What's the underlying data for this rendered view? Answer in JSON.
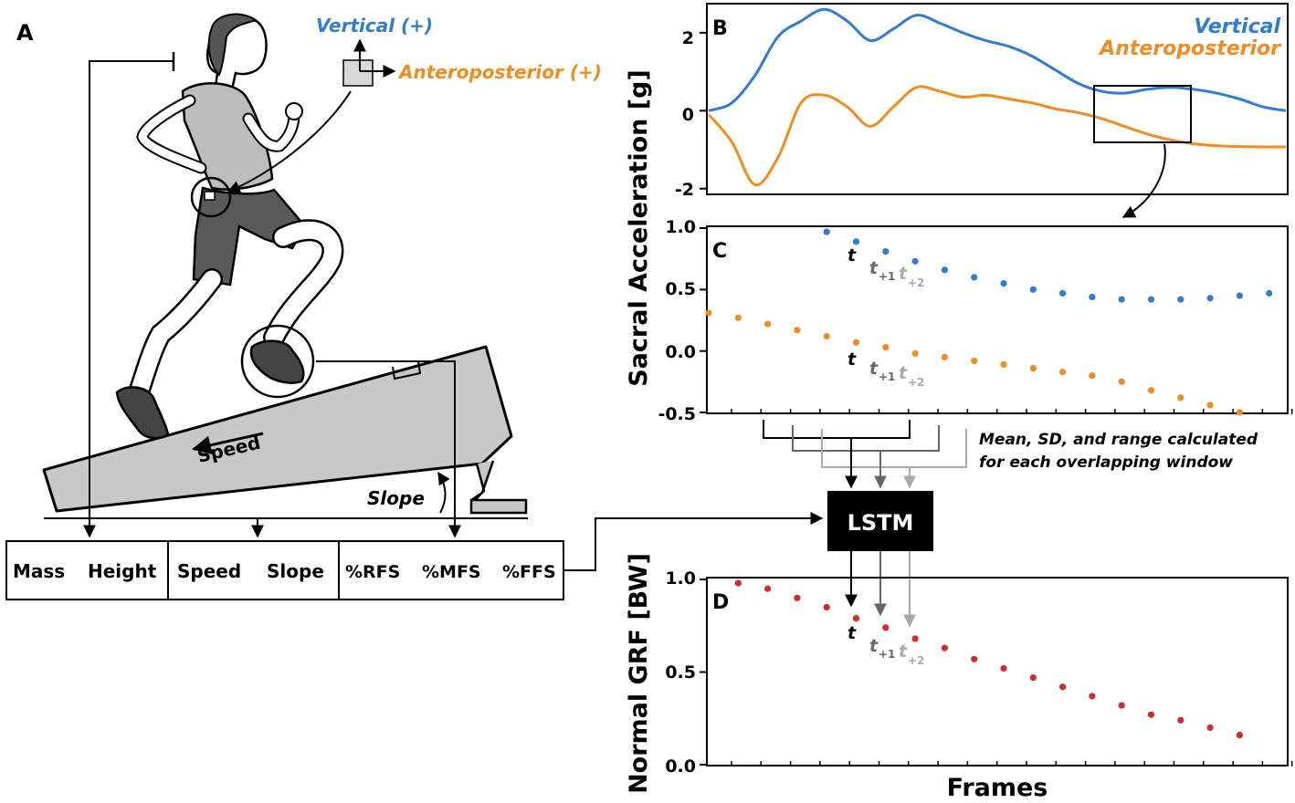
{
  "panel_a": {
    "letter": "A",
    "vertical_label": "Vertical (+)",
    "ap_label": "Anteroposterior (+)",
    "speed_label": "Speed",
    "slope_label": "Slope",
    "inputs": [
      "Mass",
      "Height",
      "Speed",
      "Slope",
      "%RFS",
      "%MFS",
      "%FFS"
    ]
  },
  "panel_b": {
    "letter": "B",
    "yticks": [
      "2",
      "0",
      "-2"
    ],
    "legend": {
      "vertical": "Vertical",
      "anteroposterior": "Anteroposterior"
    }
  },
  "panel_c": {
    "letter": "C",
    "yticks": [
      "1.0",
      "0.5",
      "0.0",
      "-0.5"
    ],
    "t": "t",
    "t1": "t",
    "t1_sub": "+1",
    "t2": "t",
    "t2_sub": "+2"
  },
  "panel_d": {
    "letter": "D",
    "yticks": [
      "1.0",
      "0.5",
      "0.0"
    ],
    "t": "t",
    "t1": "t",
    "t1_sub": "+1",
    "t2": "t",
    "t2_sub": "+2"
  },
  "shared_ylabel": "Sacral Acceleration [g]",
  "d_ylabel": "Normal GRF [BW]",
  "xlabel": "Frames",
  "lstm_label": "LSTM",
  "window_note": [
    "Mean, SD, and range calculated",
    "for each overlapping window"
  ],
  "colors": {
    "vertical": "#2f7cd0",
    "anteroposterior": "#f28b20",
    "grf": "#d12b2b",
    "gray1": "#666666",
    "gray2": "#aaaaaa"
  },
  "chart_data": [
    {
      "type": "line",
      "panel": "B",
      "ylim": [
        -2.1,
        2.7
      ],
      "yticks": [
        2,
        0,
        -2
      ],
      "series": [
        {
          "name": "Vertical",
          "x": [
            0,
            4,
            8,
            12,
            16,
            20,
            24,
            28,
            32,
            36,
            40,
            44,
            48,
            52,
            56,
            60,
            64,
            68,
            72,
            76,
            80,
            84,
            88,
            92,
            96,
            100
          ],
          "y": [
            0,
            0.2,
            0.9,
            1.9,
            2.3,
            2.6,
            2.3,
            1.8,
            2.1,
            2.45,
            2.25,
            2.0,
            1.8,
            1.65,
            1.4,
            1.05,
            0.7,
            0.5,
            0.45,
            0.55,
            0.6,
            0.55,
            0.45,
            0.3,
            0.1,
            0
          ]
        },
        {
          "name": "Anteroposterior",
          "x": [
            0,
            4,
            8,
            12,
            16,
            20,
            24,
            28,
            32,
            36,
            40,
            44,
            48,
            52,
            56,
            60,
            64,
            68,
            72,
            76,
            80,
            84,
            88,
            92,
            96,
            100
          ],
          "y": [
            -0.1,
            -0.8,
            -1.9,
            -1.2,
            0.2,
            0.4,
            0.1,
            -0.4,
            0.1,
            0.6,
            0.5,
            0.35,
            0.4,
            0.3,
            0.2,
            0.05,
            -0.05,
            -0.2,
            -0.4,
            -0.6,
            -0.75,
            -0.85,
            -0.9,
            -0.92,
            -0.93,
            -0.93
          ]
        }
      ]
    },
    {
      "type": "scatter",
      "panel": "C",
      "ylim": [
        -0.5,
        1.0
      ],
      "yticks": [
        1.0,
        0.5,
        0.0,
        -0.5
      ],
      "series": [
        {
          "name": "Vertical",
          "x": [
            4,
            5,
            6,
            7,
            8,
            9,
            10,
            11,
            12,
            13,
            14,
            15,
            16,
            17,
            18,
            19
          ],
          "y": [
            0.97,
            0.89,
            0.81,
            0.73,
            0.66,
            0.6,
            0.55,
            0.5,
            0.47,
            0.44,
            0.42,
            0.42,
            0.42,
            0.43,
            0.45,
            0.47
          ]
        },
        {
          "name": "Anteroposterior",
          "x": [
            0,
            1,
            2,
            3,
            4,
            5,
            6,
            7,
            8,
            9,
            10,
            11,
            12,
            13,
            14,
            15,
            16,
            17,
            18
          ],
          "y": [
            0.31,
            0.27,
            0.22,
            0.17,
            0.12,
            0.07,
            0.03,
            -0.02,
            -0.05,
            -0.08,
            -0.11,
            -0.14,
            -0.17,
            -0.2,
            -0.25,
            -0.32,
            -0.38,
            -0.44,
            -0.5
          ]
        }
      ]
    },
    {
      "type": "scatter",
      "panel": "D",
      "ylim": [
        0.0,
        1.0
      ],
      "yticks": [
        1.0,
        0.5,
        0.0
      ],
      "series": [
        {
          "name": "Normal GRF",
          "x": [
            1,
            2,
            3,
            4,
            5,
            6,
            7,
            8,
            9,
            10,
            11,
            12,
            13,
            14,
            15,
            16,
            17,
            18
          ],
          "y": [
            0.98,
            0.95,
            0.9,
            0.85,
            0.79,
            0.74,
            0.68,
            0.63,
            0.57,
            0.52,
            0.47,
            0.42,
            0.37,
            0.32,
            0.27,
            0.24,
            0.2,
            0.16
          ]
        }
      ]
    }
  ]
}
